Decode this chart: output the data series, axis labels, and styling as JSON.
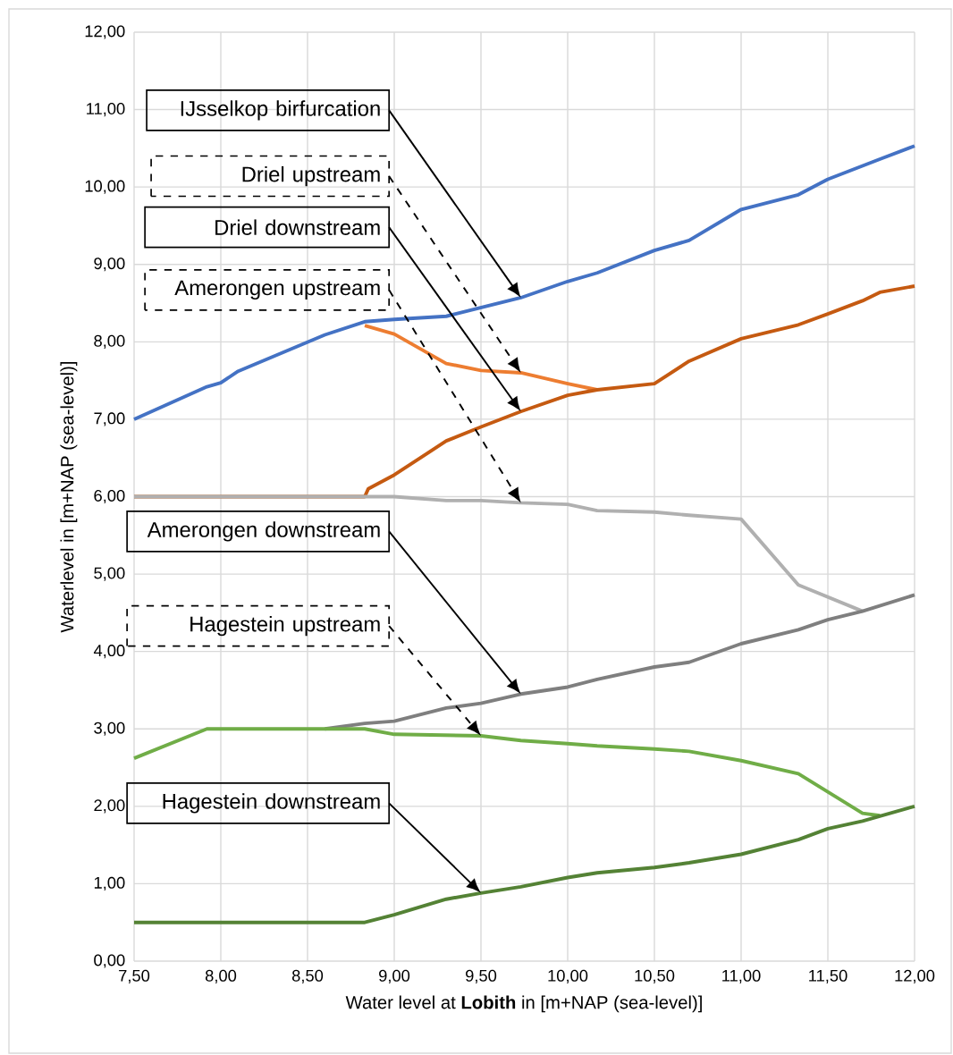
{
  "chart_data": {
    "type": "line",
    "xlabel": "Water level at **Lobith** in [m+NAP (sea-level)]",
    "ylabel": "Waterlevel in [m+NAP (sea-level)]",
    "xlim": [
      7.5,
      12.0
    ],
    "ylim": [
      0,
      12
    ],
    "xticks": [
      {
        "value": 7.5,
        "label": "7,50"
      },
      {
        "value": 8.0,
        "label": "8,00"
      },
      {
        "value": 8.5,
        "label": "8,50"
      },
      {
        "value": 9.0,
        "label": "9,00"
      },
      {
        "value": 9.5,
        "label": "9,50"
      },
      {
        "value": 10.0,
        "label": "10,00"
      },
      {
        "value": 10.5,
        "label": "10,50"
      },
      {
        "value": 11.0,
        "label": "11,00"
      },
      {
        "value": 11.5,
        "label": "11,50"
      },
      {
        "value": 12.0,
        "label": "12,00"
      }
    ],
    "yticks": [
      {
        "value": 0,
        "label": "0,00"
      },
      {
        "value": 1,
        "label": "1,00"
      },
      {
        "value": 2,
        "label": "2,00"
      },
      {
        "value": 3,
        "label": "3,00"
      },
      {
        "value": 4,
        "label": "4,00"
      },
      {
        "value": 5,
        "label": "5,00"
      },
      {
        "value": 6,
        "label": "6,00"
      },
      {
        "value": 7,
        "label": "7,00"
      },
      {
        "value": 8,
        "label": "8,00"
      },
      {
        "value": 9,
        "label": "9,00"
      },
      {
        "value": 10,
        "label": "10,00"
      },
      {
        "value": 11,
        "label": "11,00"
      },
      {
        "value": 12,
        "label": "12,00"
      }
    ],
    "grid": true,
    "marker": "none",
    "line_style": "solid",
    "series": [
      {
        "name": "Driel upstream",
        "color": "#ed7d31",
        "x": [
          8.83,
          9.0,
          9.3,
          9.5,
          9.73,
          10.0,
          10.17
        ],
        "values": [
          8.21,
          8.1,
          7.72,
          7.63,
          7.6,
          7.46,
          7.38
        ]
      },
      {
        "name": "Driel downstream",
        "color": "#c55a11",
        "x": [
          7.5,
          8.83,
          8.85,
          9.0,
          9.3,
          9.5,
          9.73,
          10.0,
          10.17,
          10.5,
          10.7,
          11.0,
          11.33,
          11.5,
          11.7,
          11.8,
          12.0
        ],
        "values": [
          6.0,
          6.0,
          6.1,
          6.28,
          6.72,
          6.9,
          7.1,
          7.31,
          7.38,
          7.46,
          7.75,
          8.04,
          8.22,
          8.36,
          8.53,
          8.64,
          8.72
        ]
      },
      {
        "name": "IJsselkop birfurcation",
        "color": "#4472c4",
        "x": [
          7.5,
          7.92,
          8.0,
          8.1,
          8.6,
          8.83,
          9.0,
          9.3,
          9.73,
          10.0,
          10.17,
          10.5,
          10.7,
          11.0,
          11.33,
          11.5,
          11.8,
          12.0
        ],
        "values": [
          7.0,
          7.42,
          7.47,
          7.62,
          8.09,
          8.26,
          8.29,
          8.33,
          8.57,
          8.78,
          8.89,
          9.18,
          9.31,
          9.71,
          9.9,
          10.1,
          10.36,
          10.53
        ]
      },
      {
        "name": "Amerongen upstream",
        "color": "#b0b0b0",
        "x": [
          7.5,
          9.0,
          9.3,
          9.5,
          9.73,
          10.0,
          10.17,
          10.5,
          10.7,
          11.0,
          11.33,
          11.7
        ],
        "values": [
          6.0,
          6.0,
          5.95,
          5.95,
          5.92,
          5.9,
          5.82,
          5.8,
          5.76,
          5.71,
          4.86,
          4.52
        ]
      },
      {
        "name": "Amerongen downstream",
        "color": "#7f7f7f",
        "x": [
          8.6,
          8.83,
          9.0,
          9.3,
          9.5,
          9.73,
          10.0,
          10.17,
          10.5,
          10.7,
          11.0,
          11.33,
          11.5,
          11.7,
          12.0
        ],
        "values": [
          3.0,
          3.07,
          3.1,
          3.27,
          3.33,
          3.45,
          3.54,
          3.64,
          3.8,
          3.86,
          4.1,
          4.28,
          4.41,
          4.52,
          4.73
        ]
      },
      {
        "name": "Hagestein upstream",
        "color": "#70ad47",
        "x": [
          7.5,
          7.92,
          8.83,
          9.0,
          9.5,
          9.73,
          10.0,
          10.17,
          10.5,
          10.7,
          11.0,
          11.33,
          11.7,
          11.8
        ],
        "values": [
          2.62,
          3.0,
          3.0,
          2.93,
          2.91,
          2.85,
          2.81,
          2.78,
          2.74,
          2.71,
          2.59,
          2.42,
          1.91,
          1.88
        ]
      },
      {
        "name": "Hagestein downstream",
        "color": "#548235",
        "x": [
          7.5,
          8.83,
          9.0,
          9.3,
          9.5,
          9.73,
          10.0,
          10.17,
          10.5,
          10.7,
          11.0,
          11.33,
          11.5,
          11.7,
          12.0
        ],
        "values": [
          0.5,
          0.5,
          0.6,
          0.8,
          0.88,
          0.96,
          1.08,
          1.14,
          1.21,
          1.27,
          1.38,
          1.57,
          1.71,
          1.81,
          2.0
        ]
      }
    ]
  }
}
